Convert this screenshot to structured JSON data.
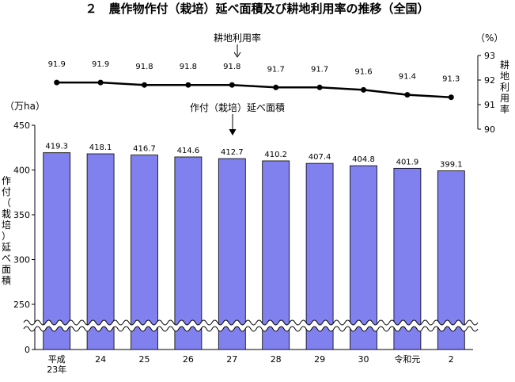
{
  "title": "２　農作物作付（栽培）延べ面積及び耕地利用率の推移（全国）",
  "chart_data": {
    "type": "bar",
    "categories": [
      "平成\n23年",
      "24",
      "25",
      "26",
      "27",
      "28",
      "29",
      "30",
      "令和元",
      "2"
    ],
    "series": [
      {
        "name": "作付（栽培）延べ面積",
        "type": "bar",
        "values": [
          419.3,
          418.1,
          416.7,
          414.6,
          412.7,
          410.2,
          407.4,
          404.8,
          401.9,
          399.1
        ],
        "color": "#8080ee"
      },
      {
        "name": "耕地利用率",
        "type": "line",
        "values": [
          91.9,
          91.9,
          91.8,
          91.8,
          91.8,
          91.7,
          91.7,
          91.6,
          91.4,
          91.3
        ],
        "color": "#000000"
      }
    ],
    "bar_value_labels": [
      "419.3",
      "418.1",
      "416.7",
      "414.6",
      "412.7",
      "410.2",
      "407.4",
      "404.8",
      "401.9",
      "399.1"
    ],
    "line_value_labels": [
      "91.9",
      "91.9",
      "91.8",
      "91.8",
      "91.8",
      "91.7",
      "91.7",
      "91.6",
      "91.4",
      "91.3"
    ],
    "left_axis": {
      "unit": "（万ha）",
      "label": "作付（栽培）延べ面積",
      "ticks": [
        "0",
        "250",
        "300",
        "350",
        "400",
        "450"
      ],
      "range": [
        250,
        450
      ],
      "broken": true
    },
    "right_axis": {
      "unit": "（%）",
      "label": "耕地利用率",
      "ticks": [
        "90",
        "91",
        "92",
        "93"
      ],
      "range": [
        90,
        93
      ]
    },
    "annotations": {
      "line": "耕地利用率",
      "bar": "作付（栽培）延べ面積"
    }
  }
}
